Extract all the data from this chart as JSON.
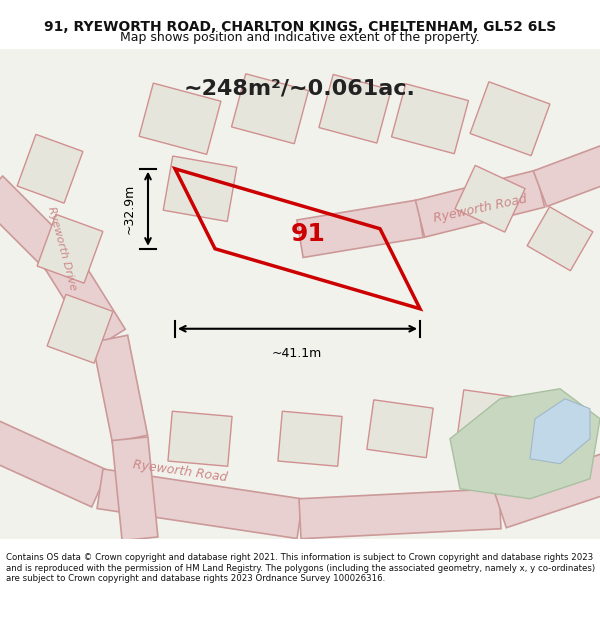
{
  "title_line1": "91, RYEWORTH ROAD, CHARLTON KINGS, CHELTENHAM, GL52 6LS",
  "title_line2": "Map shows position and indicative extent of the property.",
  "area_label": "~248m²/~0.061ac.",
  "plot_number": "91",
  "dim_width": "~41.1m",
  "dim_height": "~32.9m",
  "footer": "Contains OS data © Crown copyright and database right 2021. This information is subject to Crown copyright and database rights 2023 and is reproduced with the permission of HM Land Registry. The polygons (including the associated geometry, namely x, y co-ordinates) are subject to Crown copyright and database rights 2023 Ordnance Survey 100026316.",
  "bg_color": "#f0f0e8",
  "map_bg": "#f5f5f0",
  "road_color": "#e8c8c8",
  "road_fill": "#f0e0e0",
  "property_outline_color": "#cc0000",
  "property_fill": "none",
  "street_label1": "Ryeworth Drive",
  "street_label2": "Ryeworth Road",
  "street_label3": "Ryeworth Road"
}
